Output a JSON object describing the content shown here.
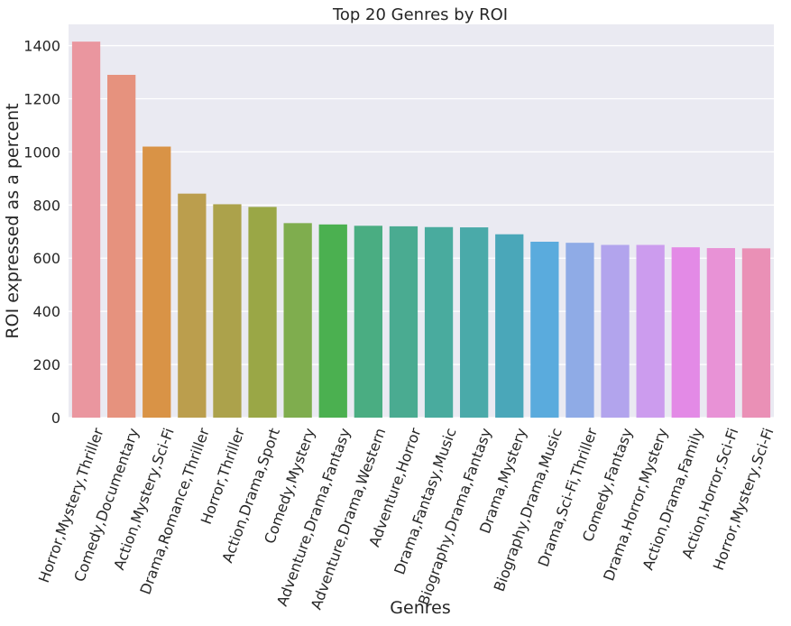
{
  "chart_data": {
    "type": "bar",
    "title": "Top 20 Genres by ROI",
    "xlabel": "Genres",
    "ylabel": "ROI expressed as a percent",
    "ylim": [
      0,
      1480
    ],
    "yticks": [
      0,
      200,
      400,
      600,
      800,
      1000,
      1200,
      1400
    ],
    "grid": true,
    "categories": [
      "Horror,Mystery,Thriller",
      "Comedy,Documentary",
      "Action,Mystery,Sci-Fi",
      "Drama,Romance,Thriller",
      "Horror,Thriller",
      "Action,Drama,Sport",
      "Comedy,Mystery",
      "Adventure,Drama,Fantasy",
      "Adventure,Drama,Western",
      "Adventure,Horror",
      "Drama,Fantasy,Music",
      "Biography,Drama,Fantasy",
      "Drama,Mystery",
      "Biography,Drama,Music",
      "Drama,Sci-Fi,Thriller",
      "Comedy,Fantasy",
      "Drama,Horror,Mystery",
      "Action,Drama,Family",
      "Action,Horror,Sci-Fi",
      "Horror,Mystery,Sci-Fi"
    ],
    "values": [
      1415,
      1290,
      1020,
      843,
      803,
      793,
      732,
      727,
      722,
      720,
      717,
      716,
      690,
      662,
      658,
      650,
      650,
      641,
      638,
      637
    ],
    "colors": [
      "#ea969f",
      "#e6927e",
      "#d99346",
      "#bb9e4d",
      "#aca24b",
      "#9aa746",
      "#7fad4e",
      "#4bb050",
      "#4aad82",
      "#4aab91",
      "#49ab9e",
      "#4aaaa9",
      "#4aa7b9",
      "#5aabdd",
      "#8fabe6",
      "#b2a4ed",
      "#cc9cee",
      "#e38ae6",
      "#e892d6",
      "#ea90b6"
    ],
    "background_color": "#eaeaf2",
    "grid_color": "#ffffff"
  }
}
